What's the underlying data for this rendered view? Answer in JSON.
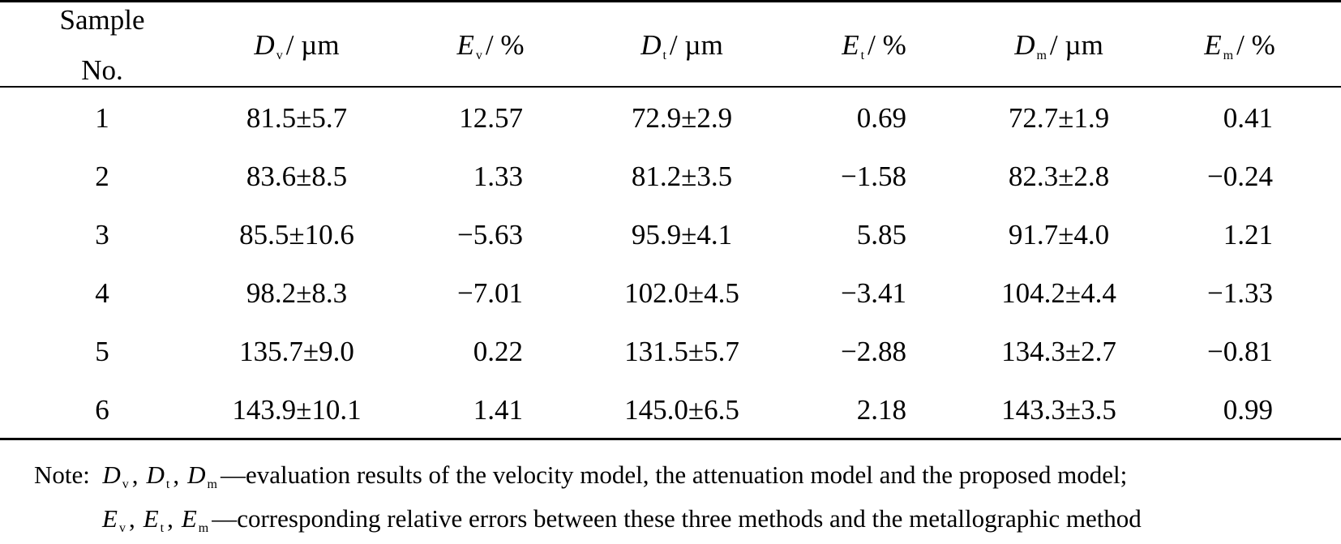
{
  "table": {
    "headers": {
      "sample_line1": "Sample",
      "sample_line2": "No.",
      "dv": {
        "symbol": "D",
        "sub": "v",
        "unit": "/ µm"
      },
      "ev": {
        "symbol": "E",
        "sub": "v",
        "unit": "/ %"
      },
      "dt": {
        "symbol": "D",
        "sub": "t",
        "unit": "/ µm"
      },
      "et": {
        "symbol": "E",
        "sub": "t",
        "unit": "/ %"
      },
      "dm": {
        "symbol": "D",
        "sub": "m",
        "unit": "/ µm"
      },
      "em": {
        "symbol": "E",
        "sub": "m",
        "unit": "/ %"
      }
    },
    "rows": [
      {
        "no": "1",
        "dv": "81.5±5.7",
        "ev": "12.57",
        "dt": "72.9±2.9",
        "et": "0.69",
        "dm": "72.7±1.9",
        "em": "0.41"
      },
      {
        "no": "2",
        "dv": "83.6±8.5",
        "ev": "1.33",
        "dt": "81.2±3.5",
        "et": "−1.58",
        "dm": "82.3±2.8",
        "em": "−0.24"
      },
      {
        "no": "3",
        "dv": "85.5±10.6",
        "ev": "−5.63",
        "dt": "95.9±4.1",
        "et": "5.85",
        "dm": "91.7±4.0",
        "em": "1.21"
      },
      {
        "no": "4",
        "dv": "98.2±8.3",
        "ev": "−7.01",
        "dt": "102.0±4.5",
        "et": "−3.41",
        "dm": "104.2±4.4",
        "em": "−1.33"
      },
      {
        "no": "5",
        "dv": "135.7±9.0",
        "ev": "0.22",
        "dt": "131.5±5.7",
        "et": "−2.88",
        "dm": "134.3±2.7",
        "em": "−0.81"
      },
      {
        "no": "6",
        "dv": "143.9±10.1",
        "ev": "1.41",
        "dt": "145.0±6.5",
        "et": "2.18",
        "dm": "143.3±3.5",
        "em": "0.99"
      }
    ]
  },
  "note": {
    "prefix": "Note:",
    "line1_symbols": [
      {
        "symbol": "D",
        "sub": "v",
        "sep": ","
      },
      {
        "symbol": "D",
        "sub": "t",
        "sep": ","
      },
      {
        "symbol": "D",
        "sub": "m",
        "sep": ""
      }
    ],
    "line1_text": "—evaluation results of the velocity model, the attenuation model and the proposed model;",
    "line2_symbols": [
      {
        "symbol": "E",
        "sub": "v",
        "sep": ","
      },
      {
        "symbol": "E",
        "sub": "t",
        "sep": ","
      },
      {
        "symbol": "E",
        "sub": "m",
        "sep": ""
      }
    ],
    "line2_text": "—corresponding relative errors between these three methods and the metallographic method"
  }
}
